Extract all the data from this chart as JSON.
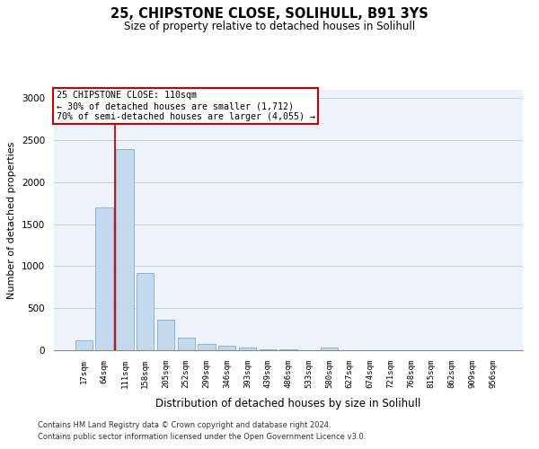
{
  "title_line1": "25, CHIPSTONE CLOSE, SOLIHULL, B91 3YS",
  "title_line2": "Size of property relative to detached houses in Solihull",
  "xlabel": "Distribution of detached houses by size in Solihull",
  "ylabel": "Number of detached properties",
  "bar_color": "#c5d9ee",
  "bar_edge_color": "#7aadd4",
  "categories": [
    "17sqm",
    "64sqm",
    "111sqm",
    "158sqm",
    "205sqm",
    "252sqm",
    "299sqm",
    "346sqm",
    "393sqm",
    "439sqm",
    "486sqm",
    "533sqm",
    "580sqm",
    "627sqm",
    "674sqm",
    "721sqm",
    "768sqm",
    "815sqm",
    "862sqm",
    "909sqm",
    "956sqm"
  ],
  "values": [
    120,
    1700,
    2390,
    920,
    360,
    155,
    80,
    55,
    35,
    10,
    10,
    5,
    30,
    5,
    0,
    0,
    0,
    0,
    0,
    0,
    0
  ],
  "ylim": [
    0,
    3100
  ],
  "yticks": [
    0,
    500,
    1000,
    1500,
    2000,
    2500,
    3000
  ],
  "vline_x_index": 2,
  "annotation_title": "25 CHIPSTONE CLOSE: 110sqm",
  "annotation_line1": "← 30% of detached houses are smaller (1,712)",
  "annotation_line2": "70% of semi-detached houses are larger (4,055) →",
  "annotation_box_facecolor": "#ffffff",
  "annotation_box_edgecolor": "#cc0000",
  "vline_color": "#cc0000",
  "footer_line1": "Contains HM Land Registry data © Crown copyright and database right 2024.",
  "footer_line2": "Contains public sector information licensed under the Open Government Licence v3.0.",
  "bg_color": "#eef2fb",
  "grid_color": "#c8cfe0",
  "fig_width": 6.0,
  "fig_height": 5.0
}
